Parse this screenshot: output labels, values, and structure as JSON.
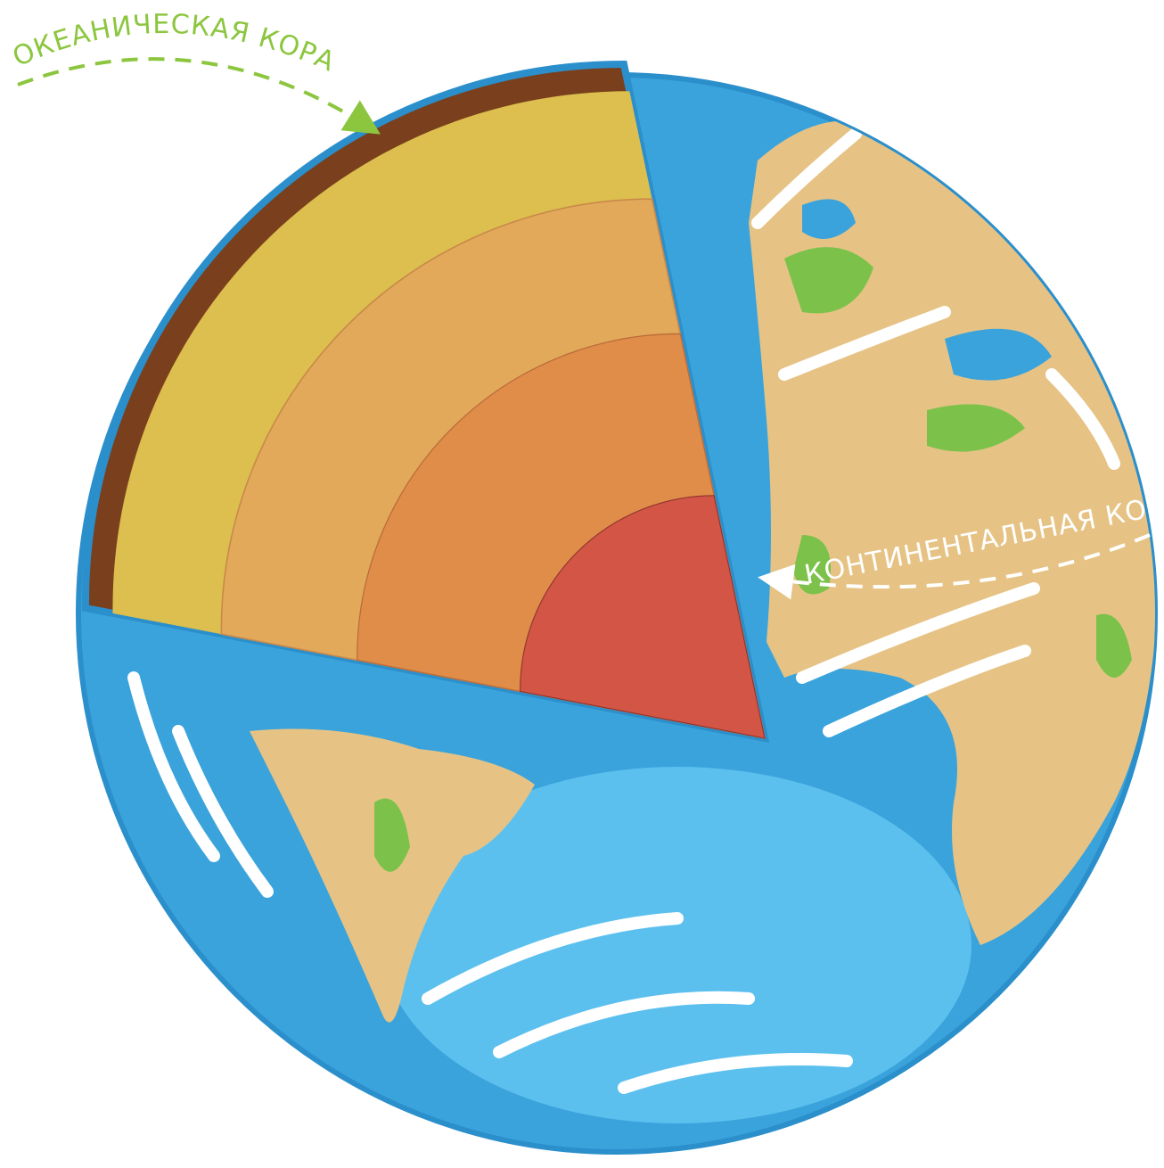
{
  "labels": {
    "oceanic_crust": "ОКЕАНИЧЕСКАЯ КОРА",
    "continental_crust": "КОНТИНЕНТАЛЬНАЯ КОРА"
  }
}
